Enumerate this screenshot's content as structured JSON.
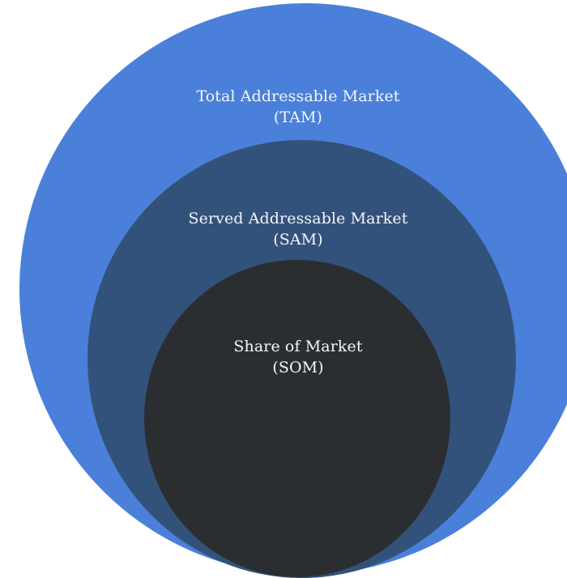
{
  "diagram": {
    "type": "nested-circles",
    "colors": {
      "background": "#ffffff",
      "outer": "#4a80d9",
      "middle": "#33527b",
      "inner": "#2b2e31",
      "text": "#f4f6fa"
    },
    "levels": [
      {
        "title": "Total Addressable Market",
        "abbr": "(TAM)"
      },
      {
        "title": "Served Addressable Market",
        "abbr": "(SAM)"
      },
      {
        "title": "Share of Market",
        "abbr": "(SOM)"
      }
    ]
  }
}
